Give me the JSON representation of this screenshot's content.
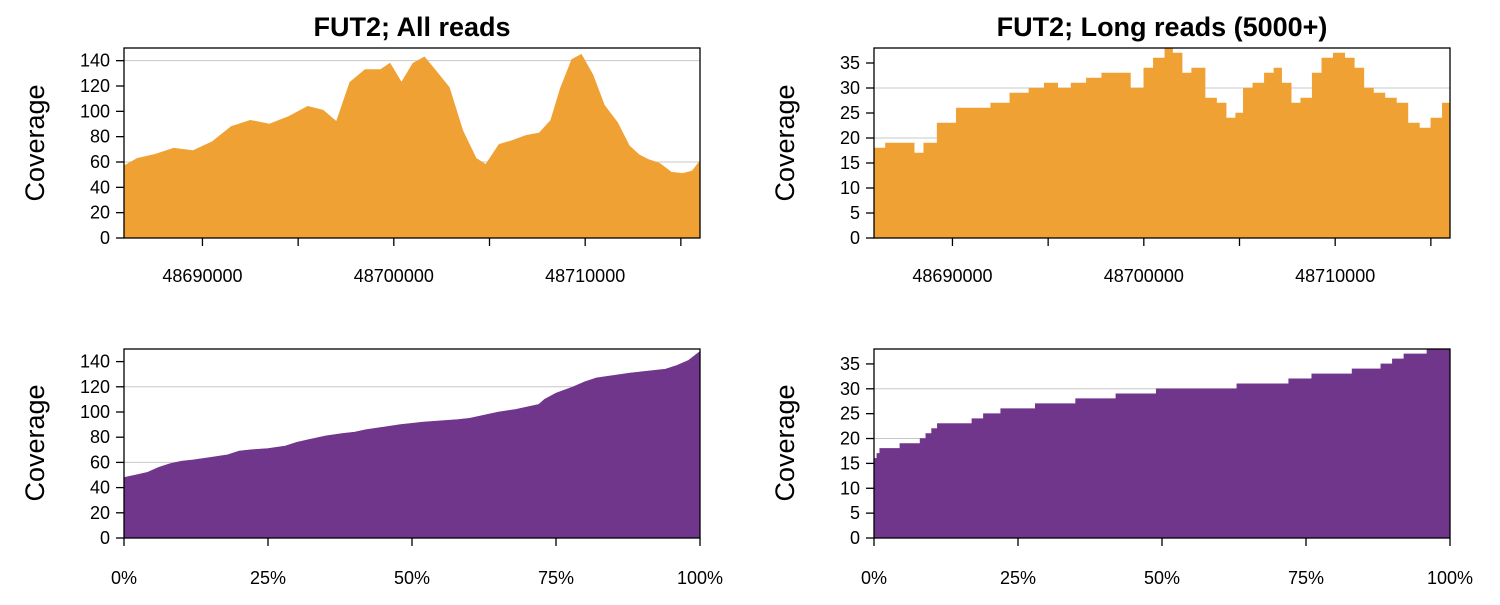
{
  "colors": {
    "orange": "#f0a134",
    "purple": "#70368c",
    "grid": "#c8c8c8"
  },
  "chart_data": [
    {
      "id": "p1",
      "type": "area",
      "title": "FUT2; All reads",
      "ylabel": "Coverage",
      "xlabel": "",
      "color": "#f0a134",
      "xlim": [
        48685900,
        48716000
      ],
      "ylim": [
        0,
        150
      ],
      "yticks": [
        0,
        20,
        40,
        60,
        80,
        100,
        120,
        140
      ],
      "ytick_labels": [
        "0",
        "20",
        "40",
        "60",
        "80",
        "100",
        "120",
        "140"
      ],
      "xticks": [
        48690000,
        48695000,
        48700000,
        48705000,
        48710000,
        48715000
      ],
      "xtick_labels": [
        "48690000",
        "",
        "48700000",
        "",
        "48710000",
        ""
      ],
      "grid_y": [
        60,
        140
      ],
      "x": [
        48685900,
        48686600,
        48687500,
        48688500,
        48689500,
        48690500,
        48691500,
        48692500,
        48693500,
        48694500,
        48695500,
        48696300,
        48697000,
        48697700,
        48698500,
        48699300,
        48699800,
        48700400,
        48701000,
        48701600,
        48702200,
        48702900,
        48703600,
        48704300,
        48704800,
        48705500,
        48706200,
        48706900,
        48707600,
        48708200,
        48708700,
        48709300,
        48709800,
        48710400,
        48711000,
        48711700,
        48712300,
        48712800,
        48713300,
        48713900,
        48714500,
        48715100,
        48715600,
        48716000
      ],
      "values": [
        57,
        62,
        66,
        70,
        69,
        75,
        88,
        92,
        90,
        95,
        104,
        100,
        92,
        122,
        133,
        132,
        138,
        122,
        138,
        142,
        132,
        118,
        85,
        62,
        58,
        73,
        77,
        80,
        83,
        92,
        118,
        140,
        145,
        128,
        105,
        90,
        73,
        65,
        62,
        58,
        52,
        50,
        53,
        60
      ]
    },
    {
      "id": "p2",
      "type": "area",
      "title": "FUT2; Long reads (5000+)",
      "ylabel": "Coverage",
      "xlabel": "",
      "color": "#f0a134",
      "xlim": [
        48685900,
        48716000
      ],
      "ylim": [
        0,
        38
      ],
      "yticks": [
        0,
        5,
        10,
        15,
        20,
        25,
        30,
        35
      ],
      "ytick_labels": [
        "0",
        "5",
        "10",
        "15",
        "20",
        "25",
        "30",
        "35"
      ],
      "xticks": [
        48690000,
        48695000,
        48700000,
        48705000,
        48710000,
        48715000
      ],
      "xtick_labels": [
        "48690000",
        "",
        "48700000",
        "",
        "48710000",
        ""
      ],
      "grid_y": [
        20,
        30
      ],
      "step": true,
      "x": [
        48685900,
        48686500,
        48687300,
        48688000,
        48688500,
        48689200,
        48690200,
        48691000,
        48692000,
        48693000,
        48694000,
        48694800,
        48695500,
        48696200,
        48697000,
        48697800,
        48698500,
        48699300,
        48700000,
        48700500,
        48701100,
        48701500,
        48702000,
        48702500,
        48703200,
        48703800,
        48704300,
        48704800,
        48705200,
        48705700,
        48706300,
        48706800,
        48707200,
        48707700,
        48708200,
        48708800,
        48709300,
        48709900,
        48710500,
        48711000,
        48711500,
        48712000,
        48712600,
        48713200,
        48713800,
        48714400,
        48715000,
        48715600
      ],
      "values": [
        18,
        19,
        19,
        17,
        19,
        23,
        26,
        26,
        27,
        29,
        30,
        31,
        30,
        31,
        32,
        33,
        33,
        30,
        34,
        36,
        38,
        37,
        33,
        34,
        28,
        27,
        24,
        25,
        30,
        31,
        33,
        34,
        31,
        27,
        28,
        33,
        36,
        37,
        36,
        34,
        30,
        29,
        28,
        27,
        23,
        22,
        24,
        27
      ]
    },
    {
      "id": "p3",
      "type": "area",
      "title": "",
      "ylabel": "Coverage",
      "xlabel": "",
      "color": "#70368c",
      "xlim": [
        0,
        100
      ],
      "ylim": [
        0,
        150
      ],
      "yticks": [
        0,
        20,
        40,
        60,
        80,
        100,
        120,
        140
      ],
      "ytick_labels": [
        "0",
        "20",
        "40",
        "60",
        "80",
        "100",
        "120",
        "140"
      ],
      "xticks": [
        0,
        25,
        50,
        75,
        100
      ],
      "xtick_labels": [
        "0%",
        "25%",
        "50%",
        "75%",
        "100%"
      ],
      "grid_y": [
        60,
        120
      ],
      "x": [
        0,
        2,
        4,
        6,
        8,
        10,
        12,
        15,
        18,
        20,
        22,
        25,
        28,
        30,
        32,
        35,
        38,
        40,
        42,
        45,
        48,
        50,
        52,
        55,
        58,
        60,
        62,
        65,
        68,
        70,
        72,
        73,
        75,
        78,
        80,
        82,
        85,
        88,
        90,
        92,
        94,
        96,
        98,
        100
      ],
      "values": [
        48,
        50,
        52,
        56,
        59,
        61,
        62,
        64,
        66,
        69,
        70,
        71,
        73,
        76,
        78,
        81,
        83,
        84,
        86,
        88,
        90,
        91,
        92,
        93,
        94,
        95,
        97,
        100,
        102,
        104,
        106,
        110,
        115,
        120,
        124,
        127,
        129,
        131,
        132,
        133,
        134,
        137,
        141,
        148
      ]
    },
    {
      "id": "p4",
      "type": "area",
      "title": "",
      "ylabel": "Coverage",
      "xlabel": "",
      "color": "#70368c",
      "xlim": [
        0,
        100
      ],
      "ylim": [
        0,
        38
      ],
      "yticks": [
        0,
        5,
        10,
        15,
        20,
        25,
        30,
        35
      ],
      "ytick_labels": [
        "0",
        "5",
        "10",
        "15",
        "20",
        "25",
        "30",
        "35"
      ],
      "xticks": [
        0,
        25,
        50,
        75,
        100
      ],
      "xtick_labels": [
        "0%",
        "25%",
        "50%",
        "75%",
        "100%"
      ],
      "grid_y": [
        20,
        30
      ],
      "step": true,
      "x": [
        0,
        0.5,
        1,
        4.5,
        8,
        9,
        10,
        11,
        17,
        19,
        22,
        28,
        35,
        42,
        49,
        53,
        63,
        72,
        76,
        83,
        88,
        90,
        92,
        96,
        99.5
      ],
      "values": [
        16,
        17,
        18,
        19,
        20,
        21,
        22,
        23,
        24,
        25,
        26,
        27,
        28,
        29,
        30,
        30,
        31,
        32,
        33,
        34,
        35,
        36,
        37,
        38,
        38
      ]
    }
  ]
}
